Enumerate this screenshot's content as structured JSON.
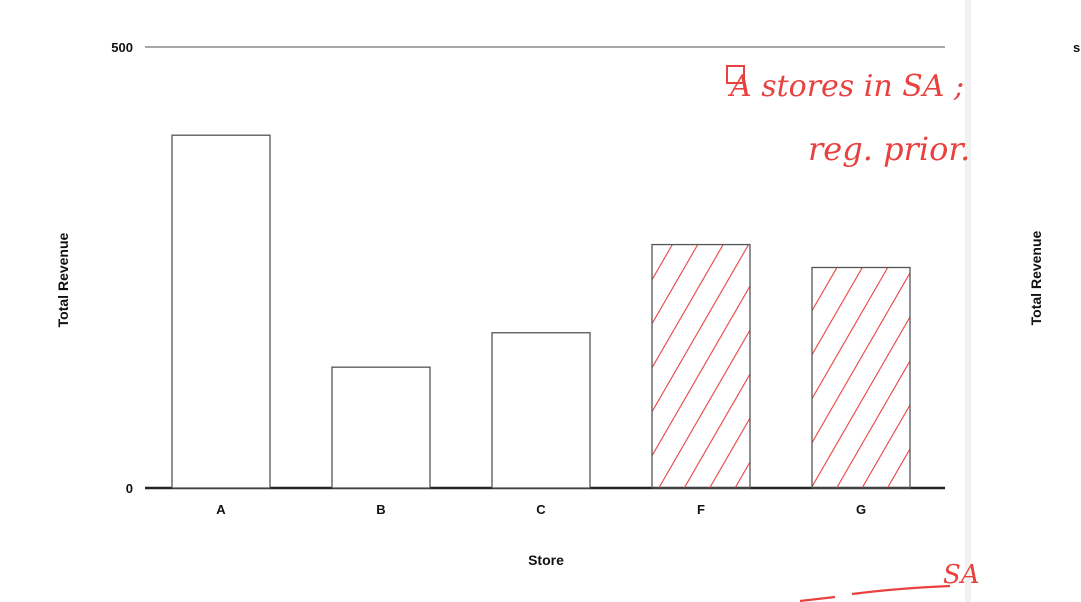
{
  "chart_data": {
    "type": "bar",
    "categories": [
      "A",
      "B",
      "C",
      "F",
      "G"
    ],
    "values": [
      400,
      137,
      176,
      276,
      250
    ],
    "highlighted_categories": [
      "F",
      "G"
    ],
    "xlabel": "Store",
    "ylabel": "Total Revenue",
    "ylim": [
      0,
      500
    ],
    "yticks": [
      0,
      500
    ],
    "grid": false,
    "colors": {
      "bar_fill": "#ffffff",
      "bar_stroke": "#555555",
      "hatch": "#e8413f",
      "axis": "#222222",
      "gridline": "#888888"
    }
  },
  "annotations": {
    "note_line1": "A  stores in SA ;",
    "note_line2": "reg. prior.",
    "bottom_note": "SA"
  },
  "right_panel": {
    "ylabel": "Total Revenue",
    "fragment": "s"
  }
}
